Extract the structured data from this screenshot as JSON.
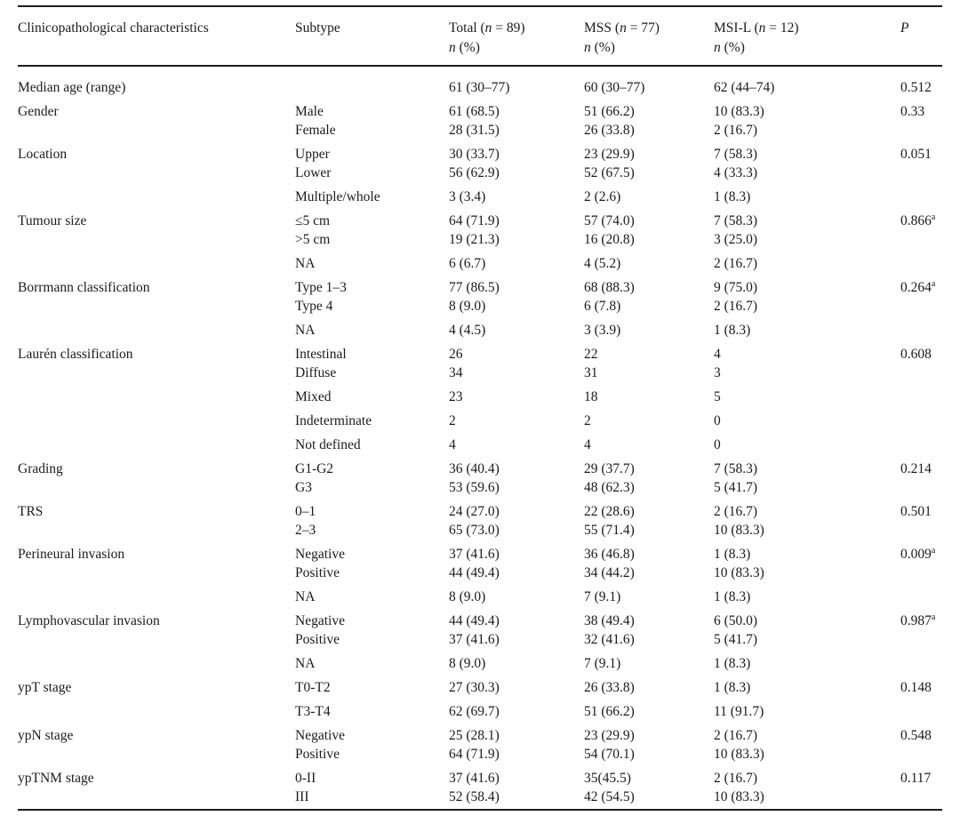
{
  "colors": {
    "background": "#ffffff",
    "text": "#1b1b1b",
    "rule": "#1d1d1d"
  },
  "table": {
    "headers": {
      "characteristics": "Clinicopathological characteristics",
      "subtype": "Subtype",
      "total": {
        "pre": "Total (",
        "n": "n",
        "post": " = 89)"
      },
      "mss": {
        "pre": "MSS (",
        "n": "n",
        "post": " = 77)"
      },
      "msil": {
        "pre": "MSI-L (",
        "n": "n",
        "post": " = 12)"
      },
      "n_pct": {
        "n": "n",
        "rest": " (%)"
      },
      "p": "P"
    },
    "rows": [
      {
        "characteristic": "Median age (range)",
        "subtype": "",
        "total": "61 (30–77)",
        "mss": "60 (30–77)",
        "msil": "62 (44–74)",
        "p": "0.512"
      },
      {
        "characteristic": "Gender",
        "subtype": "Male\nFemale",
        "total": "61 (68.5)\n28 (31.5)",
        "mss": "51 (66.2)\n26 (33.8)",
        "msil": "10 (83.3)\n2 (16.7)",
        "p": "0.33"
      },
      {
        "characteristic": "Location",
        "subtype": "Upper\nLower",
        "total": "30 (33.7)\n56 (62.9)",
        "mss": "23 (29.9)\n52 (67.5)",
        "msil": "7 (58.3)\n4 (33.3)",
        "p": "0.051"
      },
      {
        "characteristic": "",
        "subtype": "Multiple/whole",
        "total": "3 (3.4)",
        "mss": "2 (2.6)",
        "msil": "1 (8.3)",
        "p": ""
      },
      {
        "characteristic": "Tumour size",
        "subtype": "≤5 cm\n>5 cm",
        "total": "64 (71.9)\n19 (21.3)",
        "mss": "57 (74.0)\n16 (20.8)",
        "msil": "7 (58.3)\n3 (25.0)",
        "p": "0.866",
        "p_sup": "a"
      },
      {
        "characteristic": "",
        "subtype": "NA",
        "total": "6 (6.7)",
        "mss": "4 (5.2)",
        "msil": "2 (16.7)",
        "p": ""
      },
      {
        "characteristic": "Borrmann classification",
        "subtype": "Type 1–3\nType 4",
        "total": "77 (86.5)\n8 (9.0)",
        "mss": "68 (88.3)\n6 (7.8)",
        "msil": "9 (75.0)\n2 (16.7)",
        "p": "0.264",
        "p_sup": "a"
      },
      {
        "characteristic": "",
        "subtype": "NA",
        "total": "4 (4.5)",
        "mss": "3 (3.9)",
        "msil": "1 (8.3)",
        "p": ""
      },
      {
        "characteristic": "Laurén classification",
        "subtype": "Intestinal\nDiffuse",
        "total": "26\n34",
        "mss": "22\n31",
        "msil": "4\n3",
        "p": "0.608"
      },
      {
        "characteristic": "",
        "subtype": "Mixed",
        "total": "23",
        "mss": "18",
        "msil": "5",
        "p": ""
      },
      {
        "characteristic": "",
        "subtype": "Indeterminate",
        "total": "2",
        "mss": "2",
        "msil": "0",
        "p": ""
      },
      {
        "characteristic": "",
        "subtype": "Not defined",
        "total": "4",
        "mss": "4",
        "msil": "0",
        "p": ""
      },
      {
        "characteristic": "Grading",
        "subtype": "G1-G2\nG3",
        "total": "36 (40.4)\n53 (59.6)",
        "mss": "29 (37.7)\n48 (62.3)",
        "msil": "7 (58.3)\n5 (41.7)",
        "p": "0.214"
      },
      {
        "characteristic": "TRS",
        "subtype": "0–1\n2–3",
        "total": "24 (27.0)\n65 (73.0)",
        "mss": "22 (28.6)\n55 (71.4)",
        "msil": "2 (16.7)\n10 (83.3)",
        "p": "0.501"
      },
      {
        "characteristic": "Perineural invasion",
        "subtype": "Negative\nPositive",
        "total": "37 (41.6)\n44 (49.4)",
        "mss": "36 (46.8)\n34 (44.2)",
        "msil": "1 (8.3)\n10 (83.3)",
        "p": "0.009",
        "p_sup": "a"
      },
      {
        "characteristic": "",
        "subtype": "NA",
        "total": "8 (9.0)",
        "mss": "7 (9.1)",
        "msil": "1 (8.3)",
        "p": ""
      },
      {
        "characteristic": "Lymphovascular invasion",
        "subtype": "Negative\nPositive",
        "total": "44 (49.4)\n37 (41.6)",
        "mss": "38 (49.4)\n32 (41.6)",
        "msil": "6 (50.0)\n5 (41.7)",
        "p": "0.987",
        "p_sup": "a"
      },
      {
        "characteristic": "",
        "subtype": "NA",
        "total": "8 (9.0)",
        "mss": "7 (9.1)",
        "msil": "1 (8.3)",
        "p": ""
      },
      {
        "characteristic": "ypT stage",
        "subtype": "T0-T2",
        "total": "27 (30.3)",
        "mss": "26 (33.8)",
        "msil": "1 (8.3)",
        "p": "0.148"
      },
      {
        "characteristic": "",
        "subtype": "T3-T4",
        "total": "62 (69.7)",
        "mss": "51 (66.2)",
        "msil": "11 (91.7)",
        "p": ""
      },
      {
        "characteristic": "ypN stage",
        "subtype": "Negative\nPositive",
        "total": "25 (28.1)\n64 (71.9)",
        "mss": "23 (29.9)\n54 (70.1)",
        "msil": "2 (16.7)\n10 (83.3)",
        "p": "0.548"
      },
      {
        "characteristic": "ypTNM stage",
        "subtype": "0-II\nIII",
        "total": "37 (41.6)\n52 (58.4)",
        "mss": "35(45.5)\n42 (54.5)",
        "msil": "2 (16.7)\n10 (83.3)",
        "p": "0.117"
      }
    ]
  }
}
